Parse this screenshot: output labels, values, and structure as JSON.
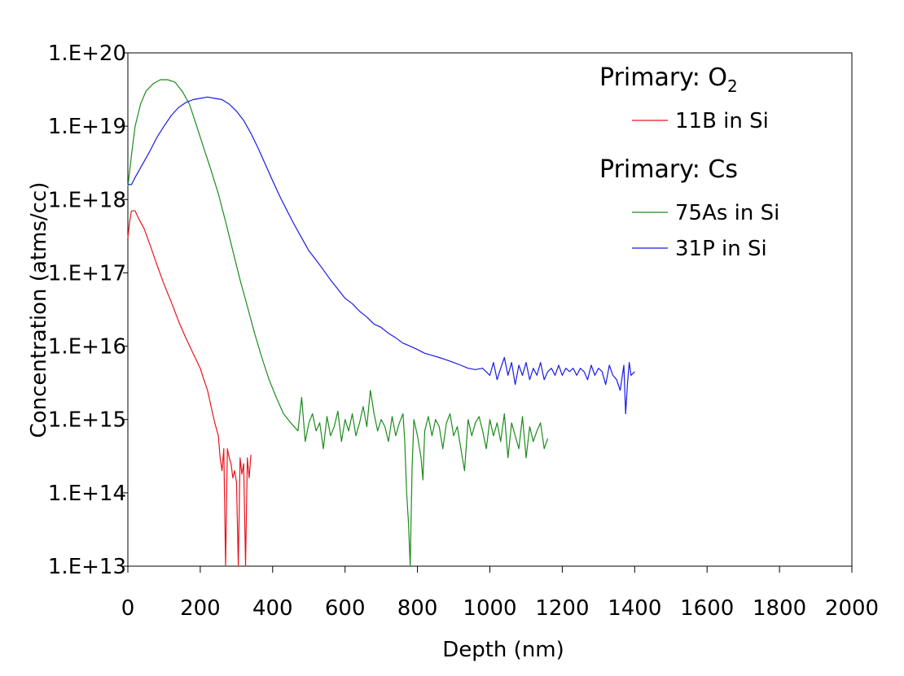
{
  "chart_data": {
    "type": "line",
    "xlabel": "Depth (nm)",
    "ylabel": "Concentration (atms/cc)",
    "xlim": [
      0,
      2000
    ],
    "ylim": [
      10000000000000.0,
      1e+20
    ],
    "y_scale": "log",
    "x_ticks": [
      "0",
      "200",
      "400",
      "600",
      "800",
      "1000",
      "1200",
      "1400",
      "1600",
      "1800",
      "2000"
    ],
    "y_ticks": [
      "1.E+13",
      "1.E+14",
      "1.E+15",
      "1.E+16",
      "1.E+17",
      "1.E+18",
      "1.E+19",
      "1.E+20"
    ],
    "grid": false,
    "legend_position": "top-right",
    "legend_groups": [
      {
        "heading": "Primary: O",
        "heading_sub": "2",
        "series": [
          "11B in Si"
        ]
      },
      {
        "heading": "Primary: Cs",
        "heading_sub": "",
        "series": [
          "75As in Si",
          "31P in Si"
        ]
      }
    ],
    "series": [
      {
        "name": "11B in Si",
        "color": "#e8141e",
        "points": [
          [
            0,
            3e+17
          ],
          [
            5,
            5e+17
          ],
          [
            10,
            7e+17
          ],
          [
            20,
            7e+17
          ],
          [
            30,
            5.5e+17
          ],
          [
            45,
            4e+17
          ],
          [
            60,
            2.5e+17
          ],
          [
            80,
            1.3e+17
          ],
          [
            100,
            7e+16
          ],
          [
            120,
            4e+16
          ],
          [
            140,
            2.2e+16
          ],
          [
            160,
            1.3e+16
          ],
          [
            180,
            8000000000000000.0
          ],
          [
            200,
            5000000000000000.0
          ],
          [
            210,
            3500000000000000.0
          ],
          [
            220,
            2500000000000000.0
          ],
          [
            230,
            1500000000000000.0
          ],
          [
            240,
            900000000000000.0
          ],
          [
            250,
            600000000000000.0
          ],
          [
            255,
            300000000000000.0
          ],
          [
            260,
            200000000000000.0
          ],
          [
            265,
            400000000000000.0
          ],
          [
            270,
            10000000000000.0
          ],
          [
            275,
            400000000000000.0
          ],
          [
            280,
            300000000000000.0
          ],
          [
            285,
            250000000000000.0
          ],
          [
            290,
            160000000000000.0
          ],
          [
            295,
            200000000000000.0
          ],
          [
            300,
            140000000000000.0
          ],
          [
            305,
            10000000000000.0
          ],
          [
            310,
            300000000000000.0
          ],
          [
            315,
            180000000000000.0
          ],
          [
            320,
            250000000000000.0
          ],
          [
            325,
            10000000000000.0
          ],
          [
            330,
            300000000000000.0
          ],
          [
            335,
            160000000000000.0
          ],
          [
            340,
            330000000000000.0
          ]
        ]
      },
      {
        "name": "75As in Si",
        "color": "#1c8c1c",
        "points": [
          [
            0,
            1.5e+18
          ],
          [
            10,
            4e+18
          ],
          [
            20,
            1e+19
          ],
          [
            35,
            2e+19
          ],
          [
            50,
            3e+19
          ],
          [
            70,
            3.8e+19
          ],
          [
            90,
            4.3e+19
          ],
          [
            110,
            4.3e+19
          ],
          [
            130,
            4e+19
          ],
          [
            150,
            3e+19
          ],
          [
            170,
            2e+19
          ],
          [
            190,
            1e+19
          ],
          [
            210,
            5e+18
          ],
          [
            230,
            2.5e+18
          ],
          [
            250,
            1.2e+18
          ],
          [
            270,
            5e+17
          ],
          [
            290,
            2e+17
          ],
          [
            310,
            8e+16
          ],
          [
            330,
            3.5e+16
          ],
          [
            350,
            1.5e+16
          ],
          [
            370,
            7000000000000000.0
          ],
          [
            390,
            3500000000000000.0
          ],
          [
            410,
            2000000000000000.0
          ],
          [
            430,
            1200000000000000.0
          ],
          [
            450,
            900000000000000.0
          ],
          [
            470,
            700000000000000.0
          ],
          [
            480,
            2000000000000000.0
          ],
          [
            490,
            500000000000000.0
          ],
          [
            500,
            900000000000000.0
          ],
          [
            510,
            1200000000000000.0
          ],
          [
            520,
            700000000000000.0
          ],
          [
            530,
            900000000000000.0
          ],
          [
            540,
            400000000000000.0
          ],
          [
            550,
            1100000000000000.0
          ],
          [
            560,
            600000000000000.0
          ],
          [
            570,
            800000000000000.0
          ],
          [
            580,
            1300000000000000.0
          ],
          [
            590,
            500000000000000.0
          ],
          [
            600,
            1000000000000000.0
          ],
          [
            610,
            700000000000000.0
          ],
          [
            620,
            1200000000000000.0
          ],
          [
            630,
            600000000000000.0
          ],
          [
            640,
            900000000000000.0
          ],
          [
            650,
            1500000000000000.0
          ],
          [
            660,
            800000000000000.0
          ],
          [
            670,
            2500000000000000.0
          ],
          [
            680,
            1200000000000000.0
          ],
          [
            690,
            700000000000000.0
          ],
          [
            700,
            1000000000000000.0
          ],
          [
            710,
            800000000000000.0
          ],
          [
            720,
            500000000000000.0
          ],
          [
            730,
            1100000000000000.0
          ],
          [
            740,
            600000000000000.0
          ],
          [
            750,
            900000000000000.0
          ],
          [
            760,
            1200000000000000.0
          ],
          [
            765,
            500000000000000.0
          ],
          [
            770,
            100000000000000.0
          ],
          [
            775,
            40000000000000.0
          ],
          [
            780,
            10000000000000.0
          ],
          [
            785,
            200000000000000.0
          ],
          [
            790,
            1000000000000000.0
          ],
          [
            800,
            600000000000000.0
          ],
          [
            810,
            300000000000000.0
          ],
          [
            815,
            150000000000000.0
          ],
          [
            820,
            700000000000000.0
          ],
          [
            830,
            1100000000000000.0
          ],
          [
            840,
            600000000000000.0
          ],
          [
            850,
            1000000000000000.0
          ],
          [
            860,
            800000000000000.0
          ],
          [
            870,
            400000000000000.0
          ],
          [
            880,
            900000000000000.0
          ],
          [
            890,
            1200000000000000.0
          ],
          [
            900,
            600000000000000.0
          ],
          [
            910,
            800000000000000.0
          ],
          [
            920,
            400000000000000.0
          ],
          [
            930,
            200000000000000.0
          ],
          [
            940,
            1000000000000000.0
          ],
          [
            950,
            600000000000000.0
          ],
          [
            960,
            900000000000000.0
          ],
          [
            970,
            1100000000000000.0
          ],
          [
            980,
            700000000000000.0
          ],
          [
            990,
            400000000000000.0
          ],
          [
            1000,
            1000000000000000.0
          ],
          [
            1010,
            600000000000000.0
          ],
          [
            1020,
            900000000000000.0
          ],
          [
            1030,
            500000000000000.0
          ],
          [
            1040,
            1200000000000000.0
          ],
          [
            1050,
            300000000000000.0
          ],
          [
            1060,
            900000000000000.0
          ],
          [
            1070,
            600000000000000.0
          ],
          [
            1080,
            400000000000000.0
          ],
          [
            1090,
            1100000000000000.0
          ],
          [
            1100,
            300000000000000.0
          ],
          [
            1110,
            800000000000000.0
          ],
          [
            1120,
            500000000000000.0
          ],
          [
            1130,
            700000000000000.0
          ],
          [
            1140,
            900000000000000.0
          ],
          [
            1150,
            400000000000000.0
          ],
          [
            1160,
            550000000000000.0
          ]
        ]
      },
      {
        "name": "31P in Si",
        "color": "#1a1ae6",
        "points": [
          [
            0,
            1.6e+18
          ],
          [
            10,
            1.6e+18
          ],
          [
            20,
            2e+18
          ],
          [
            40,
            3e+18
          ],
          [
            60,
            4.5e+18
          ],
          [
            80,
            7e+18
          ],
          [
            100,
            1e+19
          ],
          [
            120,
            1.4e+19
          ],
          [
            140,
            1.8e+19
          ],
          [
            160,
            2.1e+19
          ],
          [
            180,
            2.3e+19
          ],
          [
            200,
            2.4e+19
          ],
          [
            220,
            2.5e+19
          ],
          [
            240,
            2.4e+19
          ],
          [
            260,
            2.3e+19
          ],
          [
            280,
            2e+19
          ],
          [
            300,
            1.6e+19
          ],
          [
            320,
            1.2e+19
          ],
          [
            340,
            8e+18
          ],
          [
            360,
            5e+18
          ],
          [
            380,
            3e+18
          ],
          [
            400,
            1.8e+18
          ],
          [
            420,
            1.1e+18
          ],
          [
            440,
            7e+17
          ],
          [
            460,
            4.5e+17
          ],
          [
            480,
            3e+17
          ],
          [
            500,
            2e+17
          ],
          [
            520,
            1.5e+17
          ],
          [
            540,
            1.1e+17
          ],
          [
            560,
            8e+16
          ],
          [
            580,
            6e+16
          ],
          [
            600,
            4.5e+16
          ],
          [
            620,
            3.8e+16
          ],
          [
            640,
            3e+16
          ],
          [
            660,
            2.5e+16
          ],
          [
            680,
            2e+16
          ],
          [
            700,
            1.8e+16
          ],
          [
            720,
            1.5e+16
          ],
          [
            740,
            1.3e+16
          ],
          [
            760,
            1.1e+16
          ],
          [
            780,
            1e+16
          ],
          [
            800,
            9000000000000000.0
          ],
          [
            820,
            8000000000000000.0
          ],
          [
            840,
            7500000000000000.0
          ],
          [
            860,
            7000000000000000.0
          ],
          [
            880,
            6500000000000000.0
          ],
          [
            900,
            6000000000000000.0
          ],
          [
            920,
            5500000000000000.0
          ],
          [
            940,
            5000000000000000.0
          ],
          [
            960,
            4800000000000000.0
          ],
          [
            980,
            5000000000000000.0
          ],
          [
            1000,
            4000000000000000.0
          ],
          [
            1010,
            6000000000000000.0
          ],
          [
            1020,
            3500000000000000.0
          ],
          [
            1030,
            5000000000000000.0
          ],
          [
            1040,
            7000000000000000.0
          ],
          [
            1050,
            4000000000000000.0
          ],
          [
            1060,
            6000000000000000.0
          ],
          [
            1070,
            3000000000000000.0
          ],
          [
            1080,
            5500000000000000.0
          ],
          [
            1090,
            4000000000000000.0
          ],
          [
            1100,
            6000000000000000.0
          ],
          [
            1110,
            3500000000000000.0
          ],
          [
            1120,
            5000000000000000.0
          ],
          [
            1130,
            4000000000000000.0
          ],
          [
            1140,
            6000000000000000.0
          ],
          [
            1150,
            3500000000000000.0
          ],
          [
            1160,
            4500000000000000.0
          ],
          [
            1170,
            5000000000000000.0
          ],
          [
            1180,
            4000000000000000.0
          ],
          [
            1190,
            5500000000000000.0
          ],
          [
            1200,
            4000000000000000.0
          ],
          [
            1210,
            5000000000000000.0
          ],
          [
            1220,
            4500000000000000.0
          ],
          [
            1230,
            5000000000000000.0
          ],
          [
            1240,
            4000000000000000.0
          ],
          [
            1250,
            5000000000000000.0
          ],
          [
            1260,
            4500000000000000.0
          ],
          [
            1270,
            3500000000000000.0
          ],
          [
            1280,
            5500000000000000.0
          ],
          [
            1290,
            4000000000000000.0
          ],
          [
            1300,
            5000000000000000.0
          ],
          [
            1310,
            4500000000000000.0
          ],
          [
            1320,
            3000000000000000.0
          ],
          [
            1330,
            5500000000000000.0
          ],
          [
            1340,
            4000000000000000.0
          ],
          [
            1350,
            3500000000000000.0
          ],
          [
            1360,
            2500000000000000.0
          ],
          [
            1370,
            5500000000000000.0
          ],
          [
            1375,
            1200000000000000.0
          ],
          [
            1380,
            3000000000000000.0
          ],
          [
            1385,
            6000000000000000.0
          ],
          [
            1390,
            4000000000000000.0
          ],
          [
            1400,
            4500000000000000.0
          ]
        ]
      }
    ]
  }
}
